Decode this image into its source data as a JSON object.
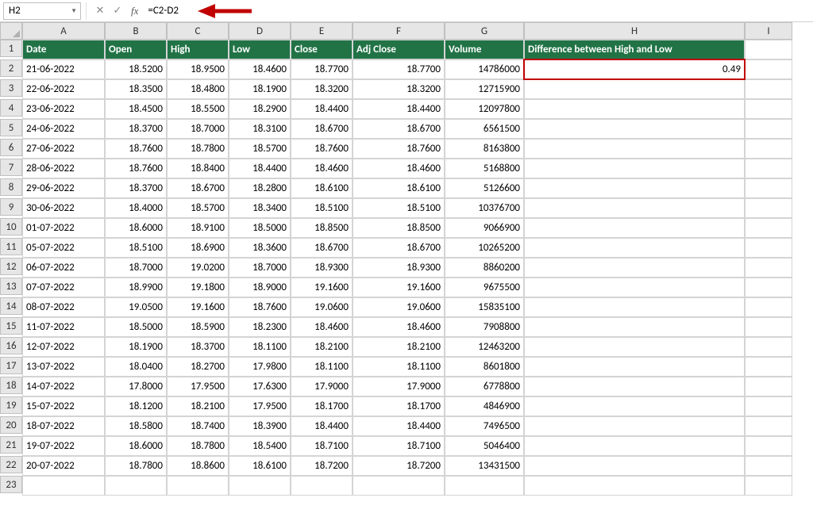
{
  "formula_bar": {
    "cell_ref": "H2",
    "formula": "=C2-D2"
  },
  "colors": {
    "header_bg": "#217346",
    "header_fg": "#ffffff",
    "grid_line": "#d4d4d4",
    "heading_bg": "#e6e6e6",
    "callout": "#c00000"
  },
  "columns": [
    "A",
    "B",
    "C",
    "D",
    "E",
    "F",
    "G",
    "H",
    "I"
  ],
  "headers": {
    "A": "Date",
    "B": "Open",
    "C": "High",
    "D": "Low",
    "E": "Close",
    "F": "Adj Close",
    "G": "Volume",
    "H": "Difference between High and Low"
  },
  "h2_value": "0.49",
  "rows": [
    {
      "n": "2",
      "date": "21-06-2022",
      "open": "18.5200",
      "high": "18.9500",
      "low": "18.4600",
      "close": "18.7700",
      "adj": "18.7700",
      "vol": "14786000"
    },
    {
      "n": "3",
      "date": "22-06-2022",
      "open": "18.3500",
      "high": "18.4800",
      "low": "18.1900",
      "close": "18.3200",
      "adj": "18.3200",
      "vol": "12715900"
    },
    {
      "n": "4",
      "date": "23-06-2022",
      "open": "18.4500",
      "high": "18.5500",
      "low": "18.2900",
      "close": "18.4400",
      "adj": "18.4400",
      "vol": "12097800"
    },
    {
      "n": "5",
      "date": "24-06-2022",
      "open": "18.3700",
      "high": "18.7000",
      "low": "18.3100",
      "close": "18.6700",
      "adj": "18.6700",
      "vol": "6561500"
    },
    {
      "n": "6",
      "date": "27-06-2022",
      "open": "18.7600",
      "high": "18.7800",
      "low": "18.5700",
      "close": "18.7600",
      "adj": "18.7600",
      "vol": "8163800"
    },
    {
      "n": "7",
      "date": "28-06-2022",
      "open": "18.7600",
      "high": "18.8400",
      "low": "18.4400",
      "close": "18.4600",
      "adj": "18.4600",
      "vol": "5168800"
    },
    {
      "n": "8",
      "date": "29-06-2022",
      "open": "18.3700",
      "high": "18.6700",
      "low": "18.2800",
      "close": "18.6100",
      "adj": "18.6100",
      "vol": "5126600"
    },
    {
      "n": "9",
      "date": "30-06-2022",
      "open": "18.4000",
      "high": "18.5700",
      "low": "18.3400",
      "close": "18.5100",
      "adj": "18.5100",
      "vol": "10376700"
    },
    {
      "n": "10",
      "date": "01-07-2022",
      "open": "18.6000",
      "high": "18.9100",
      "low": "18.5000",
      "close": "18.8500",
      "adj": "18.8500",
      "vol": "9066900"
    },
    {
      "n": "11",
      "date": "05-07-2022",
      "open": "18.5100",
      "high": "18.6900",
      "low": "18.3600",
      "close": "18.6700",
      "adj": "18.6700",
      "vol": "10265200"
    },
    {
      "n": "12",
      "date": "06-07-2022",
      "open": "18.7000",
      "high": "19.0200",
      "low": "18.7000",
      "close": "18.9300",
      "adj": "18.9300",
      "vol": "8860200"
    },
    {
      "n": "13",
      "date": "07-07-2022",
      "open": "18.9900",
      "high": "19.1800",
      "low": "18.9000",
      "close": "19.1600",
      "adj": "19.1600",
      "vol": "9675500"
    },
    {
      "n": "14",
      "date": "08-07-2022",
      "open": "19.0500",
      "high": "19.1600",
      "low": "18.7600",
      "close": "19.0600",
      "adj": "19.0600",
      "vol": "15835100"
    },
    {
      "n": "15",
      "date": "11-07-2022",
      "open": "18.5000",
      "high": "18.5900",
      "low": "18.2300",
      "close": "18.4600",
      "adj": "18.4600",
      "vol": "7908800"
    },
    {
      "n": "16",
      "date": "12-07-2022",
      "open": "18.1900",
      "high": "18.3700",
      "low": "18.1100",
      "close": "18.2100",
      "adj": "18.2100",
      "vol": "12463200"
    },
    {
      "n": "17",
      "date": "13-07-2022",
      "open": "18.0400",
      "high": "18.2700",
      "low": "17.9800",
      "close": "18.1100",
      "adj": "18.1100",
      "vol": "8601800"
    },
    {
      "n": "18",
      "date": "14-07-2022",
      "open": "17.8000",
      "high": "17.9500",
      "low": "17.6300",
      "close": "17.9000",
      "adj": "17.9000",
      "vol": "6778800"
    },
    {
      "n": "19",
      "date": "15-07-2022",
      "open": "18.1200",
      "high": "18.2100",
      "low": "17.9500",
      "close": "18.1700",
      "adj": "18.1700",
      "vol": "4846900"
    },
    {
      "n": "20",
      "date": "18-07-2022",
      "open": "18.5800",
      "high": "18.7400",
      "low": "18.3900",
      "close": "18.4400",
      "adj": "18.4400",
      "vol": "7496500"
    },
    {
      "n": "21",
      "date": "19-07-2022",
      "open": "18.6000",
      "high": "18.7800",
      "low": "18.5400",
      "close": "18.7100",
      "adj": "18.7100",
      "vol": "5046400"
    },
    {
      "n": "22",
      "date": "20-07-2022",
      "open": "18.7800",
      "high": "18.8600",
      "low": "18.6100",
      "close": "18.7200",
      "adj": "18.7200",
      "vol": "13431500"
    }
  ],
  "empty_row": "23"
}
